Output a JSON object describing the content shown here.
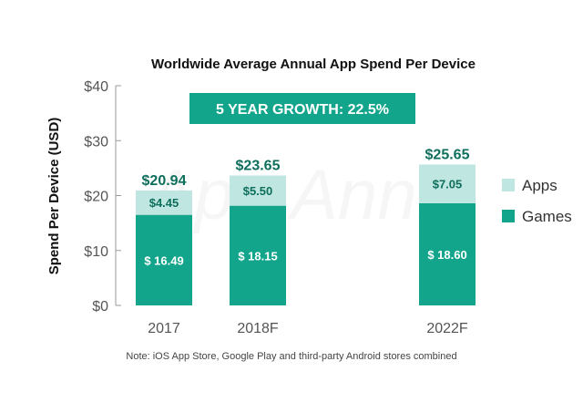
{
  "chart_data": {
    "type": "bar",
    "stacked": true,
    "title": "Worldwide Average Annual App Spend Per Device",
    "ylabel": "Spend Per Device (USD)",
    "xlabel": "",
    "ylim": [
      0,
      40
    ],
    "yticks": [
      0,
      10,
      20,
      30,
      40
    ],
    "ytick_labels": [
      "$0",
      "$10",
      "$20",
      "$30",
      "$40"
    ],
    "categories": [
      "2017",
      "2018F",
      "2022F"
    ],
    "series": [
      {
        "name": "Games",
        "values": [
          16.49,
          18.15,
          18.6
        ],
        "labels": [
          "$ 16.49",
          "$ 18.15",
          "$ 18.60"
        ],
        "color": "#13a58b"
      },
      {
        "name": "Apps",
        "values": [
          4.45,
          5.5,
          7.05
        ],
        "labels": [
          "$4.45",
          "$5.50",
          "$7.05"
        ],
        "color": "#bfe6e0"
      }
    ],
    "totals": [
      "$20.94",
      "$23.65",
      "$25.65"
    ],
    "annotation": "5 YEAR GROWTH: 22.5%",
    "legend_position": "right",
    "accent_color": "#13a58b",
    "total_label_color": "#0e6e5c",
    "watermark": "App Annie"
  },
  "footnote": "Note: iOS App Store, Google Play and third-party Android stores combined"
}
